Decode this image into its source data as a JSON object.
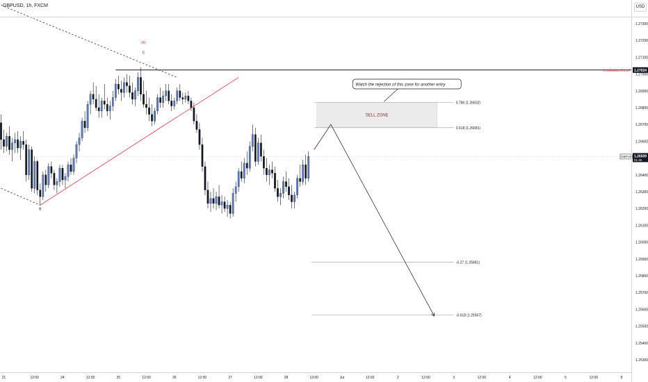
{
  "header": {
    "symbol_title": "GBPUSD, 1h, FXCM",
    "currency": "USD"
  },
  "colors": {
    "bull_fill": "#5b7fc7",
    "bear_fill": "#131722",
    "wick": "#131722",
    "trendline": "#f23645",
    "invalidation": "#f23645",
    "zone_fill": "#ebebeb",
    "grid_line": "#9598a1"
  },
  "chart_data": {
    "type": "candlestick",
    "price_ticks": [
      1.273,
      1.272,
      1.271,
      1.27,
      1.269,
      1.268,
      1.267,
      1.266,
      1.265,
      1.264,
      1.263,
      1.262,
      1.261,
      1.26,
      1.259,
      1.258,
      1.257,
      1.256,
      1.255,
      1.254,
      1.253
    ],
    "price_tick_labels": [
      "1.27300",
      "1.27200",
      "1.27100",
      "1.27000",
      "1.26900",
      "1.26800",
      "1.26700",
      "1.26600",
      "1.26500",
      "1.26400",
      "1.26300",
      "1.26200",
      "1.26100",
      "1.26000",
      "1.25900",
      "1.25800",
      "1.25700",
      "1.25600",
      "1.25500",
      "1.25400",
      "1.25300"
    ],
    "time_tick_labels": [
      "21",
      "12:00",
      "24",
      "12:00",
      "25",
      "12:00",
      "26",
      "12:00",
      "27",
      "12:00",
      "28",
      "12:00",
      "Jul",
      "12:00",
      "2",
      "12:00",
      "3",
      "12:00",
      "4",
      "12:00",
      "5",
      "12:00",
      "8"
    ],
    "time_tick_index": [
      0,
      11,
      21,
      31,
      41,
      51,
      61,
      71,
      81,
      91,
      101,
      111,
      121,
      131,
      141,
      151,
      161,
      171,
      181,
      191,
      201,
      211,
      221
    ],
    "current_price": {
      "label": "GBPUSD",
      "value": "1.26509",
      "countdown": "01:45",
      "price": 1.26509
    },
    "invalidation": {
      "label": "Invalidation Level",
      "value": "1.27024",
      "price": 1.27024,
      "start_index": 41
    },
    "wave_labels": [
      {
        "text": "(B)",
        "index": 51,
        "price": 1.2718,
        "color": "#f23645"
      },
      {
        "text": "C",
        "index": 51,
        "price": 1.2712,
        "color": "#131722"
      },
      {
        "text": "B",
        "index": 14,
        "price": 1.2619,
        "color": "#131722"
      }
    ],
    "fib_levels": [
      {
        "label": "0.786 (1.26832)",
        "price": 1.26832,
        "start_index": 112,
        "end_index": 162
      },
      {
        "label": "0.618 (1.26681)",
        "price": 1.26681,
        "start_index": 112,
        "end_index": 162
      },
      {
        "label": "-0.27 (1.25881)",
        "price": 1.25881,
        "start_index": 111,
        "end_index": 162
      },
      {
        "label": "-0.618 (1.25567)",
        "price": 1.25567,
        "start_index": 111,
        "end_index": 162
      }
    ],
    "sell_zone": {
      "label": "SELL ZONE",
      "top": 1.26832,
      "bottom": 1.26681,
      "start_index": 113,
      "end_index": 156
    },
    "callout": {
      "text": "Watch the rejection of this zone for another entry",
      "anchor_index": 137,
      "anchor_price": 1.26832
    },
    "trendlines": [
      {
        "kind": "dashed",
        "from": {
          "index": 0,
          "price": 1.2741
        },
        "to": {
          "index": 63,
          "price": 1.2698
        }
      },
      {
        "kind": "dashed",
        "from": {
          "index": 0,
          "price": 1.2632
        },
        "to": {
          "index": 14,
          "price": 1.2622
        }
      },
      {
        "kind": "red",
        "from": {
          "index": 14,
          "price": 1.2622
        },
        "to": {
          "index": 85,
          "price": 1.2698
        }
      }
    ],
    "projection": [
      {
        "index": 112,
        "price": 1.2655
      },
      {
        "index": 118,
        "price": 1.267
      },
      {
        "index": 155,
        "price": 1.2556
      }
    ],
    "ohlc": [
      [
        1.2671,
        1.2676,
        1.2655,
        1.2661
      ],
      [
        1.2661,
        1.2667,
        1.2653,
        1.2657
      ],
      [
        1.2657,
        1.2665,
        1.2654,
        1.2663
      ],
      [
        1.2663,
        1.2669,
        1.2652,
        1.2655
      ],
      [
        1.2655,
        1.2662,
        1.2648,
        1.2659
      ],
      [
        1.2659,
        1.2665,
        1.2653,
        1.2661
      ],
      [
        1.2661,
        1.2666,
        1.2653,
        1.2656
      ],
      [
        1.2656,
        1.2663,
        1.2649,
        1.266
      ],
      [
        1.266,
        1.2666,
        1.2655,
        1.2658
      ],
      [
        1.2658,
        1.2661,
        1.2636,
        1.264
      ],
      [
        1.264,
        1.2658,
        1.2637,
        1.2655
      ],
      [
        1.2655,
        1.2657,
        1.263,
        1.2632
      ],
      [
        1.2632,
        1.2651,
        1.2629,
        1.2648
      ],
      [
        1.2648,
        1.2649,
        1.2628,
        1.2631
      ],
      [
        1.2631,
        1.2635,
        1.2622,
        1.2627
      ],
      [
        1.2627,
        1.2642,
        1.2625,
        1.264
      ],
      [
        1.264,
        1.2643,
        1.263,
        1.2634
      ],
      [
        1.2634,
        1.2647,
        1.2632,
        1.2645
      ],
      [
        1.2645,
        1.2648,
        1.2638,
        1.2641
      ],
      [
        1.2641,
        1.2643,
        1.2631,
        1.2634
      ],
      [
        1.2634,
        1.2638,
        1.2629,
        1.2636
      ],
      [
        1.2636,
        1.2646,
        1.2633,
        1.2644
      ],
      [
        1.2644,
        1.2646,
        1.2634,
        1.2637
      ],
      [
        1.2637,
        1.2641,
        1.2632,
        1.2639
      ],
      [
        1.2639,
        1.2648,
        1.2636,
        1.2646
      ],
      [
        1.2646,
        1.265,
        1.264,
        1.2642
      ],
      [
        1.2642,
        1.2652,
        1.264,
        1.265
      ],
      [
        1.265,
        1.266,
        1.2647,
        1.2658
      ],
      [
        1.2658,
        1.2665,
        1.2654,
        1.2662
      ],
      [
        1.2662,
        1.2674,
        1.266,
        1.2672
      ],
      [
        1.2672,
        1.2678,
        1.2665,
        1.2668
      ],
      [
        1.2668,
        1.2684,
        1.2666,
        1.2682
      ],
      [
        1.2682,
        1.269,
        1.2676,
        1.2688
      ],
      [
        1.2688,
        1.2695,
        1.2682,
        1.2685
      ],
      [
        1.2685,
        1.2693,
        1.2678,
        1.268
      ],
      [
        1.268,
        1.2688,
        1.2674,
        1.2678
      ],
      [
        1.2678,
        1.2686,
        1.2674,
        1.2684
      ],
      [
        1.2684,
        1.2694,
        1.2679,
        1.2682
      ],
      [
        1.2682,
        1.2686,
        1.2675,
        1.2678
      ],
      [
        1.2678,
        1.2684,
        1.2673,
        1.2681
      ],
      [
        1.2681,
        1.269,
        1.2678,
        1.2686
      ],
      [
        1.2686,
        1.2697,
        1.2684,
        1.2694
      ],
      [
        1.2694,
        1.2699,
        1.2688,
        1.2691
      ],
      [
        1.2691,
        1.2696,
        1.2684,
        1.2689
      ],
      [
        1.2689,
        1.2698,
        1.2686,
        1.2695
      ],
      [
        1.2695,
        1.27,
        1.2689,
        1.2693
      ],
      [
        1.2693,
        1.2699,
        1.2686,
        1.2689
      ],
      [
        1.2689,
        1.2695,
        1.2682,
        1.2685
      ],
      [
        1.2685,
        1.2692,
        1.2681,
        1.269
      ],
      [
        1.269,
        1.2701,
        1.2687,
        1.2698
      ],
      [
        1.2698,
        1.2704,
        1.2684,
        1.2688
      ],
      [
        1.2688,
        1.2696,
        1.268,
        1.2682
      ],
      [
        1.2682,
        1.269,
        1.2676,
        1.268
      ],
      [
        1.268,
        1.2686,
        1.2672,
        1.2676
      ],
      [
        1.2676,
        1.2682,
        1.2669,
        1.2672
      ],
      [
        1.2672,
        1.268,
        1.267,
        1.2678
      ],
      [
        1.2678,
        1.2688,
        1.2676,
        1.2686
      ],
      [
        1.2686,
        1.2692,
        1.268,
        1.2683
      ],
      [
        1.2683,
        1.269,
        1.268,
        1.2687
      ],
      [
        1.2687,
        1.2694,
        1.2684,
        1.269
      ],
      [
        1.269,
        1.2694,
        1.2682,
        1.2684
      ],
      [
        1.2684,
        1.2688,
        1.2678,
        1.2681
      ],
      [
        1.2681,
        1.2686,
        1.2679,
        1.2684
      ],
      [
        1.2684,
        1.2692,
        1.2682,
        1.269
      ],
      [
        1.269,
        1.2694,
        1.2684,
        1.2686
      ],
      [
        1.2686,
        1.2689,
        1.2682,
        1.2685
      ],
      [
        1.2685,
        1.2689,
        1.2683,
        1.2687
      ],
      [
        1.2687,
        1.269,
        1.2682,
        1.2684
      ],
      [
        1.2684,
        1.2686,
        1.2678,
        1.268
      ],
      [
        1.268,
        1.2683,
        1.267,
        1.2672
      ],
      [
        1.2672,
        1.2676,
        1.2665,
        1.2667
      ],
      [
        1.2667,
        1.2671,
        1.2655,
        1.2658
      ],
      [
        1.2658,
        1.2662,
        1.2642,
        1.2645
      ],
      [
        1.2645,
        1.2648,
        1.2628,
        1.2631
      ],
      [
        1.2631,
        1.2636,
        1.262,
        1.2623
      ],
      [
        1.2623,
        1.263,
        1.2618,
        1.2626
      ],
      [
        1.2626,
        1.2632,
        1.262,
        1.2623
      ],
      [
        1.2623,
        1.263,
        1.2619,
        1.2627
      ],
      [
        1.2627,
        1.2634,
        1.262,
        1.2622
      ],
      [
        1.2622,
        1.2628,
        1.2617,
        1.2624
      ],
      [
        1.2624,
        1.2627,
        1.2618,
        1.262
      ],
      [
        1.262,
        1.2625,
        1.2615,
        1.2622
      ],
      [
        1.2622,
        1.2624,
        1.2614,
        1.2617
      ],
      [
        1.2617,
        1.2632,
        1.2615,
        1.2629
      ],
      [
        1.2629,
        1.2636,
        1.2624,
        1.2633
      ],
      [
        1.2633,
        1.2644,
        1.263,
        1.2642
      ],
      [
        1.2642,
        1.2648,
        1.2636,
        1.2638
      ],
      [
        1.2638,
        1.265,
        1.2635,
        1.2647
      ],
      [
        1.2647,
        1.2654,
        1.264,
        1.2644
      ],
      [
        1.2644,
        1.266,
        1.2642,
        1.2657
      ],
      [
        1.2657,
        1.267,
        1.2654,
        1.2664
      ],
      [
        1.2664,
        1.2668,
        1.2645,
        1.2648
      ],
      [
        1.2648,
        1.2662,
        1.2646,
        1.2659
      ],
      [
        1.2659,
        1.2664,
        1.2648,
        1.2651
      ],
      [
        1.2651,
        1.2655,
        1.264,
        1.2644
      ],
      [
        1.2644,
        1.265,
        1.2636,
        1.264
      ],
      [
        1.264,
        1.2646,
        1.2634,
        1.2643
      ],
      [
        1.2643,
        1.2648,
        1.2638,
        1.2641
      ],
      [
        1.2641,
        1.2645,
        1.263,
        1.2632
      ],
      [
        1.2632,
        1.2637,
        1.2624,
        1.2627
      ],
      [
        1.2627,
        1.2632,
        1.2622,
        1.2629
      ],
      [
        1.2629,
        1.2639,
        1.2626,
        1.2636
      ],
      [
        1.2636,
        1.2642,
        1.263,
        1.2633
      ],
      [
        1.2633,
        1.2638,
        1.2625,
        1.2628
      ],
      [
        1.2628,
        1.2634,
        1.262,
        1.2624
      ],
      [
        1.2624,
        1.263,
        1.262,
        1.2628
      ],
      [
        1.2628,
        1.264,
        1.2626,
        1.2638
      ],
      [
        1.2638,
        1.2646,
        1.2633,
        1.2636
      ],
      [
        1.2636,
        1.2649,
        1.2634,
        1.2646
      ],
      [
        1.2646,
        1.2652,
        1.2634,
        1.2638
      ],
      [
        1.2638,
        1.2654,
        1.2636,
        1.2651
      ]
    ]
  }
}
